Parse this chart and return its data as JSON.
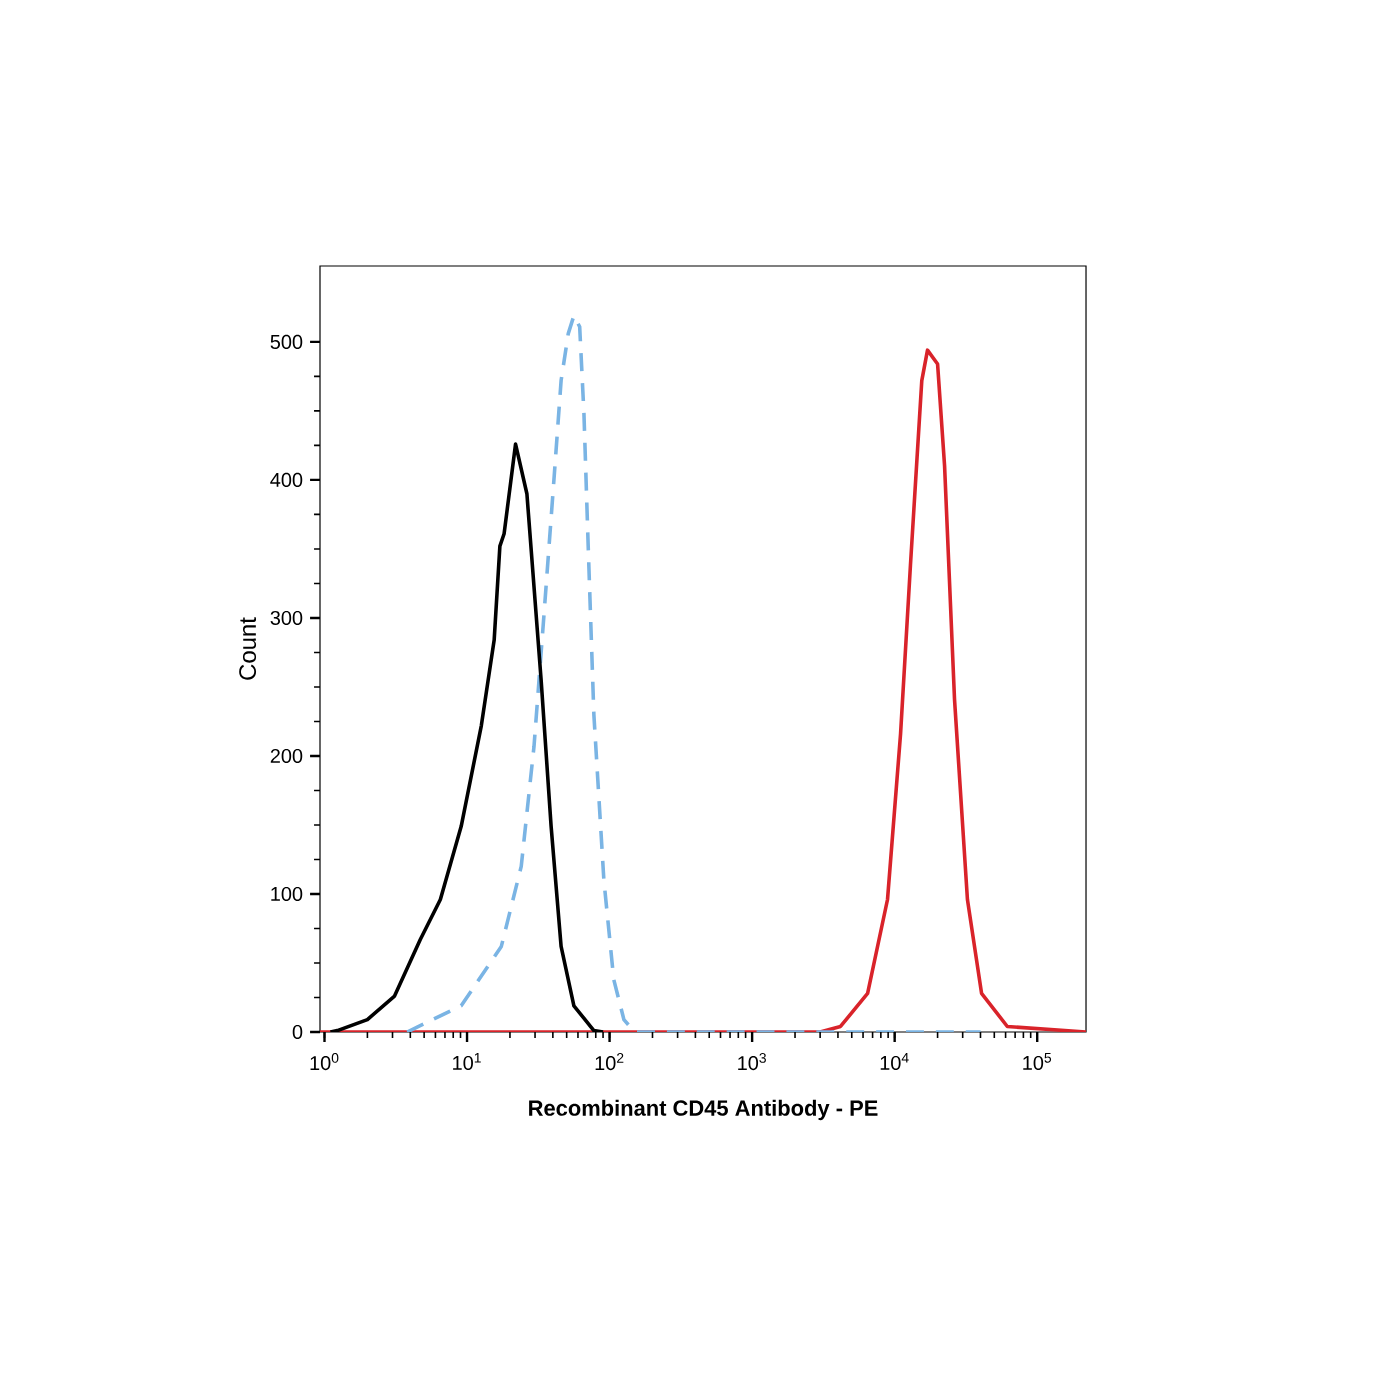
{
  "chart_data": {
    "type": "line",
    "xlabel": "Recombinant CD45 Antibody - PE",
    "ylabel": "Count",
    "log": "x",
    "xlim": [
      0.93,
      220000
    ],
    "ylim": [
      0,
      555
    ],
    "xticks": [
      {
        "value": 1,
        "label": "10$^{0}$"
      },
      {
        "value": 10,
        "label": "10$^{1}$"
      },
      {
        "value": 100,
        "label": "10$^{2}$"
      },
      {
        "value": 1000,
        "label": "10$^{3}$"
      },
      {
        "value": 10000,
        "label": "10$^{4}$"
      },
      {
        "value": 100000,
        "label": "10$^{5}$"
      }
    ],
    "yticks": [
      0,
      100,
      200,
      300,
      400,
      500
    ],
    "marker": "none",
    "series": [
      {
        "color": "#d9232a",
        "line_style": "solid",
        "x": [
          0.93,
          3000,
          4170,
          6460,
          8910,
          11000,
          12900,
          15500,
          17000,
          20000,
          22400,
          26300,
          32400,
          40700,
          61700,
          220000
        ],
        "values": [
          0,
          0,
          4,
          28,
          96,
          216,
          338,
          472,
          494,
          484,
          410,
          241,
          96,
          28,
          4,
          0
        ]
      },
      {
        "color": "#7ab4e4",
        "line_style": "dashed",
        "x": [
          3.8,
          9.1,
          17.4,
          24.0,
          29.5,
          34.7,
          40.7,
          45.7,
          51.3,
          56.2,
          61.7,
          66.1,
          70.8,
          77.6,
          91.2,
          107,
          126,
          150,
          40000
        ],
        "values": [
          0,
          19,
          62,
          120,
          207,
          303,
          400,
          472,
          506,
          519,
          511,
          448,
          352,
          230,
          110,
          38,
          9,
          0,
          0
        ]
      },
      {
        "color": "#000000",
        "line_style": "solid",
        "x": [
          1.1,
          1.23,
          2.0,
          3.1,
          4.7,
          6.5,
          9.1,
          12.6,
          15.5,
          17.0,
          18.2,
          21.9,
          26.3,
          33.1,
          38.9,
          45.7,
          56.2,
          77.6,
          90
        ],
        "values": [
          0,
          1,
          9,
          26,
          67,
          96,
          149,
          222,
          284,
          352,
          361,
          426,
          390,
          255,
          149,
          62,
          19,
          1,
          0
        ]
      }
    ]
  }
}
